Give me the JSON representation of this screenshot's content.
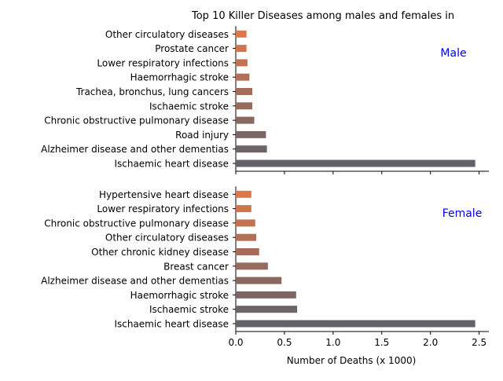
{
  "chart_data": {
    "type": "bar",
    "orientation": "horizontal",
    "title": "Top 10 Killer Diseases among males and females in",
    "xlabel": "Number of Deaths (x 1000)",
    "xlim": [
      0,
      2.6
    ],
    "xticks": [
      0,
      0.5,
      1,
      1.5,
      2,
      2.5
    ],
    "xtick_labels": [
      "0.0",
      "0.5",
      "1.0",
      "1.5",
      "2.0",
      "2.5"
    ],
    "grid": false,
    "label_color": "#0000ff",
    "bar_colors": [
      "#65616b",
      "#6d6468",
      "#7b6664",
      "#886960",
      "#966b5d",
      "#a46d59",
      "#b27056",
      "#c17252",
      "#cf744e",
      "#e0774a"
    ],
    "panels": [
      {
        "label": "Male",
        "categories": [
          "Ischaemic heart disease",
          "Alzheimer disease and other dementias",
          "Road injury",
          "Chronic obstructive pulmonary disease",
          "Ischaemic stroke",
          "Trachea, bronchus, lung cancers",
          "Haemorrhagic stroke",
          "Lower respiratory infections",
          "Prostate cancer",
          "Other circulatory diseases"
        ],
        "values": [
          2.46,
          0.32,
          0.31,
          0.19,
          0.17,
          0.17,
          0.14,
          0.12,
          0.11,
          0.11
        ]
      },
      {
        "label": "Female",
        "categories": [
          "Ischaemic heart disease",
          "Ischaemic stroke",
          "Haemorrhagic stroke",
          "Alzheimer disease and other dementias",
          "Breast cancer",
          "Other chronic kidney disease",
          "Other circulatory diseases",
          "Chronic obstructive pulmonary disease",
          "Lower respiratory infections",
          "Hypertensive heart disease"
        ],
        "values": [
          2.46,
          0.63,
          0.62,
          0.47,
          0.33,
          0.24,
          0.21,
          0.2,
          0.16,
          0.16
        ]
      }
    ]
  }
}
